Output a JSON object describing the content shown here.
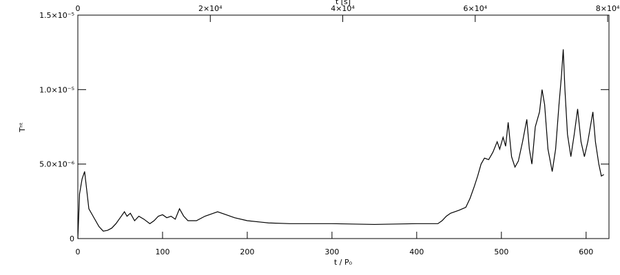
{
  "chart_data": {
    "type": "line",
    "xlabel": "t / P₀",
    "ylabel": "Tⁿᵗ",
    "x2label": "t [s]",
    "xlim": [
      0,
      627
    ],
    "xticks": [
      0,
      100,
      200,
      300,
      400,
      500,
      600
    ],
    "x2lim": [
      0,
      80200
    ],
    "x2ticks": [
      0,
      {
        "value": 20000,
        "label": "2×10⁴"
      },
      {
        "value": 40000,
        "label": "4×10⁴"
      },
      {
        "value": 60000,
        "label": "6×10⁴"
      },
      {
        "value": 80000,
        "label": "8×10⁴"
      }
    ],
    "ylim": [
      0,
      1.5e-05
    ],
    "yticks": [
      0,
      {
        "value": 5e-06,
        "label": "5.0×10⁻⁶"
      },
      {
        "value": 1e-05,
        "label": "1.0×10⁻⁵"
      },
      {
        "value": 1.5e-05,
        "label": "1.5×10⁻⁵"
      }
    ],
    "color": "#000000",
    "x": [
      0,
      2,
      5,
      8,
      10,
      13,
      18,
      25,
      30,
      35,
      40,
      45,
      50,
      55,
      58,
      62,
      67,
      72,
      78,
      85,
      90,
      95,
      100,
      105,
      110,
      115,
      120,
      125,
      130,
      140,
      150,
      160,
      165,
      175,
      185,
      200,
      225,
      250,
      300,
      350,
      400,
      425,
      430,
      435,
      440,
      450,
      458,
      463,
      468,
      472,
      476,
      480,
      485,
      490,
      495,
      498,
      502,
      505,
      508,
      512,
      516,
      520,
      525,
      530,
      533,
      536,
      540,
      545,
      548,
      551,
      555,
      560,
      564,
      568,
      571,
      573,
      575,
      578,
      582,
      586,
      590,
      594,
      598,
      602,
      605,
      608,
      611,
      615,
      618,
      621
    ],
    "values": [
      0,
      3e-06,
      4e-06,
      4.5e-06,
      3.5e-06,
      2e-06,
      1.5e-06,
      8e-07,
      5e-07,
      5.5e-07,
      7e-07,
      1e-06,
      1.4e-06,
      1.8e-06,
      1.5e-06,
      1.7e-06,
      1.2e-06,
      1.5e-06,
      1.3e-06,
      1e-06,
      1.2e-06,
      1.5e-06,
      1.6e-06,
      1.4e-06,
      1.5e-06,
      1.3e-06,
      2e-06,
      1.5e-06,
      1.2e-06,
      1.2e-06,
      1.5e-06,
      1.7e-06,
      1.8e-06,
      1.6e-06,
      1.4e-06,
      1.2e-06,
      1.05e-06,
      1e-06,
      1e-06,
      9.5e-07,
      1e-06,
      1e-06,
      1.2e-06,
      1.5e-06,
      1.7e-06,
      1.9e-06,
      2.1e-06,
      2.7e-06,
      3.5e-06,
      4.2e-06,
      5e-06,
      5.4e-06,
      5.3e-06,
      5.8e-06,
      6.5e-06,
      6e-06,
      6.8e-06,
      6.2e-06,
      7.8e-06,
      5.5e-06,
      4.8e-06,
      5.2e-06,
      6.5e-06,
      8e-06,
      6e-06,
      5e-06,
      7.5e-06,
      8.5e-06,
      1e-05,
      9e-06,
      6e-06,
      4.5e-06,
      6e-06,
      9e-06,
      1.1e-05,
      1.27e-05,
      1e-05,
      7e-06,
      5.5e-06,
      7e-06,
      8.7e-06,
      6.5e-06,
      5.5e-06,
      6.5e-06,
      7.5e-06,
      8.5e-06,
      6.5e-06,
      5e-06,
      4.2e-06,
      4.3e-06
    ]
  }
}
